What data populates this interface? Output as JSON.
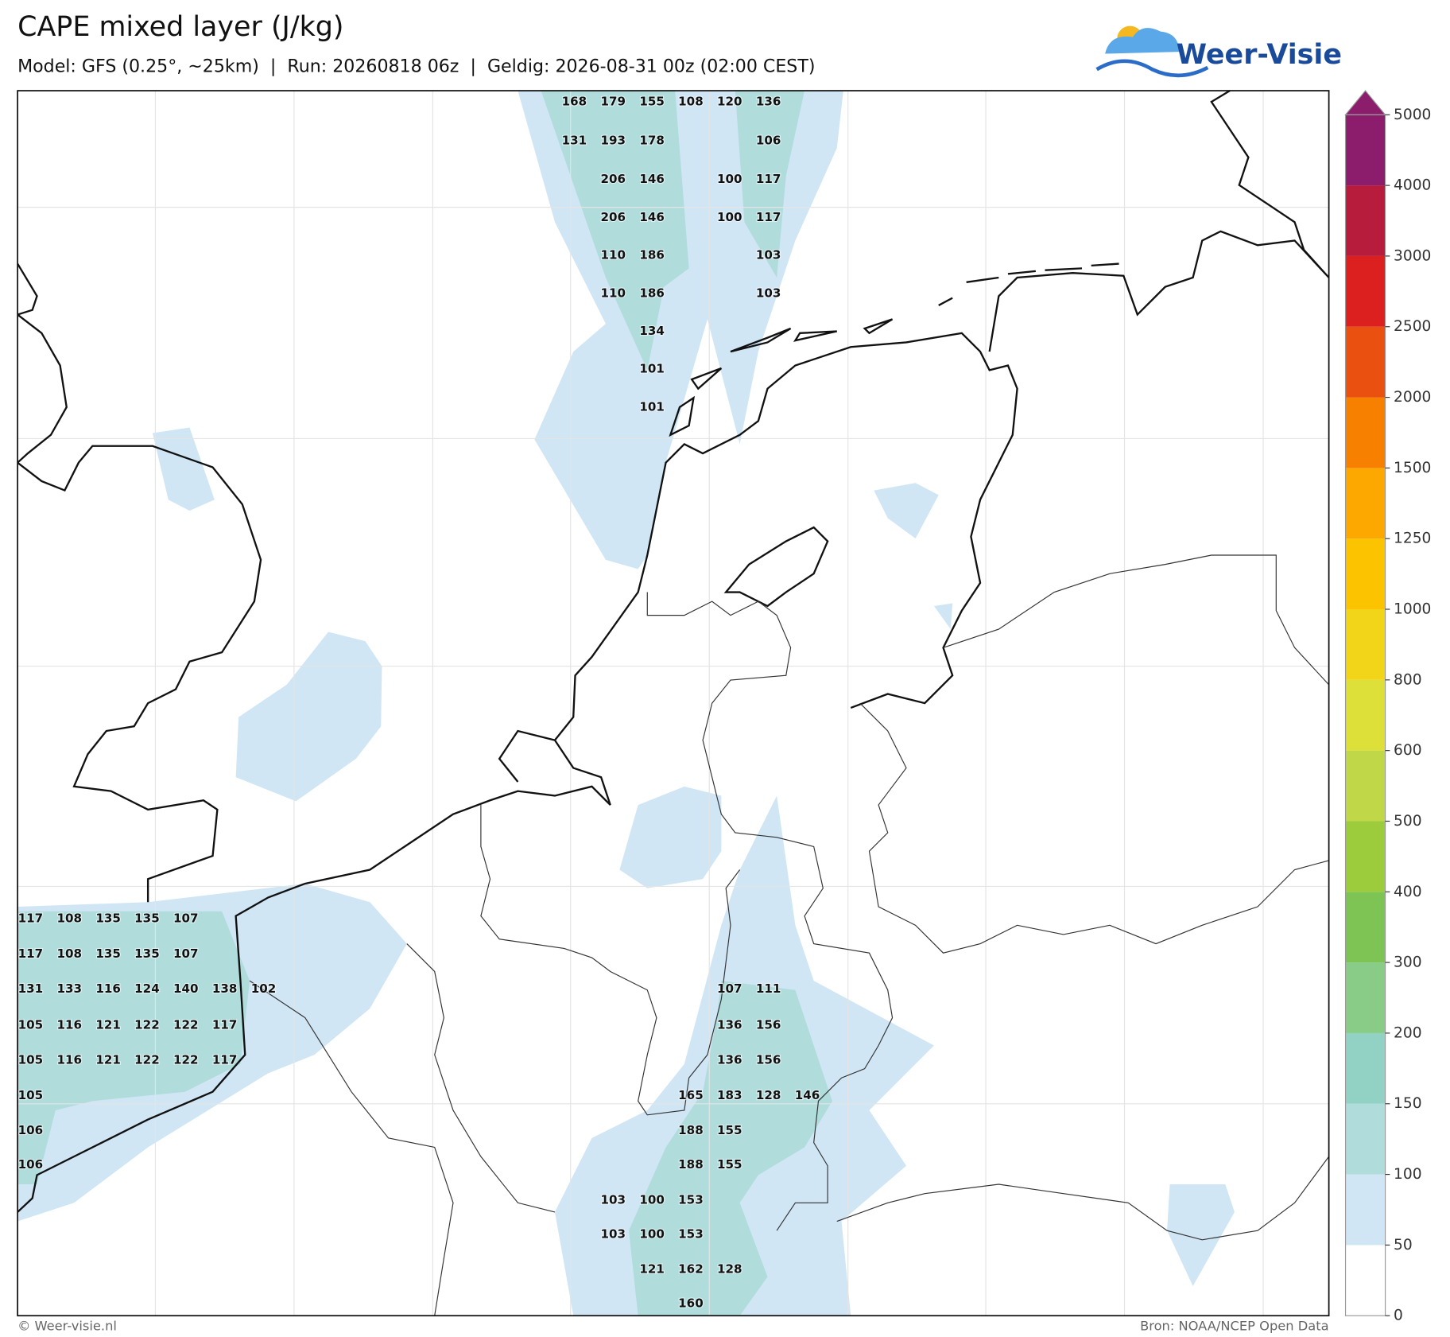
{
  "header": {
    "title": "CAPE mixed layer (J/kg)",
    "subtitle": "Model: GFS (0.25°, ~25km)  |  Run: 20260818 06z  |  Geldig: 2026-08-31 00z (02:00 CEST)",
    "logo": "Weer-Visie"
  },
  "map": {
    "value_rows": [
      [
        null,
        null,
        null,
        null,
        null,
        null,
        null,
        null,
        null,
        null,
        null,
        null,
        null,
        null,
        168,
        179,
        155,
        108,
        120,
        136,
        null
      ],
      [
        null,
        null,
        null,
        null,
        null,
        null,
        null,
        null,
        null,
        null,
        null,
        null,
        null,
        null,
        131,
        193,
        178,
        null,
        null,
        106,
        null
      ],
      [
        null,
        null,
        null,
        null,
        null,
        null,
        null,
        null,
        null,
        null,
        null,
        null,
        null,
        null,
        null,
        206,
        146,
        null,
        100,
        117,
        null
      ],
      [
        null,
        null,
        null,
        null,
        null,
        null,
        null,
        null,
        null,
        null,
        null,
        null,
        null,
        null,
        null,
        206,
        146,
        null,
        100,
        117,
        null
      ],
      [
        null,
        null,
        null,
        null,
        null,
        null,
        null,
        null,
        null,
        null,
        null,
        null,
        null,
        null,
        null,
        110,
        186,
        null,
        null,
        103,
        null
      ],
      [
        null,
        null,
        null,
        null,
        null,
        null,
        null,
        null,
        null,
        null,
        null,
        null,
        null,
        null,
        null,
        110,
        186,
        null,
        null,
        103,
        null
      ],
      [
        null,
        null,
        null,
        null,
        null,
        null,
        null,
        null,
        null,
        null,
        null,
        null,
        null,
        null,
        null,
        null,
        134,
        null,
        null,
        null,
        null
      ],
      [
        null,
        null,
        null,
        null,
        null,
        null,
        null,
        null,
        null,
        null,
        null,
        null,
        null,
        null,
        null,
        null,
        101,
        null,
        null,
        null,
        null
      ],
      [
        null,
        null,
        null,
        null,
        null,
        null,
        null,
        null,
        null,
        null,
        null,
        null,
        null,
        null,
        null,
        null,
        101,
        null,
        null,
        null,
        null
      ],
      [
        117,
        108,
        135,
        135,
        107,
        null,
        null,
        null,
        null,
        null,
        null,
        null,
        null,
        null,
        null,
        null,
        null,
        null,
        null,
        null,
        null
      ],
      [
        117,
        108,
        135,
        135,
        107,
        null,
        null,
        null,
        null,
        null,
        null,
        null,
        null,
        null,
        null,
        null,
        null,
        null,
        null,
        null,
        null
      ],
      [
        131,
        133,
        116,
        124,
        140,
        138,
        102,
        null,
        null,
        null,
        null,
        null,
        null,
        null,
        null,
        null,
        null,
        null,
        107,
        111,
        null
      ],
      [
        105,
        116,
        121,
        122,
        122,
        117,
        null,
        null,
        null,
        null,
        null,
        null,
        null,
        null,
        null,
        null,
        null,
        null,
        136,
        156,
        null
      ],
      [
        105,
        116,
        121,
        122,
        122,
        117,
        null,
        null,
        null,
        null,
        null,
        null,
        null,
        null,
        null,
        null,
        null,
        null,
        136,
        156,
        null
      ],
      [
        105,
        null,
        null,
        null,
        null,
        null,
        null,
        null,
        null,
        null,
        null,
        null,
        null,
        null,
        null,
        null,
        null,
        165,
        183,
        128,
        146
      ],
      [
        106,
        null,
        null,
        null,
        null,
        null,
        null,
        null,
        null,
        null,
        null,
        null,
        null,
        null,
        null,
        null,
        null,
        188,
        155,
        null,
        null
      ],
      [
        106,
        null,
        null,
        null,
        null,
        null,
        null,
        null,
        null,
        null,
        null,
        null,
        null,
        null,
        null,
        null,
        null,
        188,
        155,
        null,
        null
      ],
      [
        null,
        null,
        null,
        null,
        null,
        null,
        null,
        null,
        null,
        null,
        null,
        null,
        null,
        null,
        null,
        103,
        100,
        153,
        null,
        null,
        null
      ],
      [
        null,
        null,
        null,
        null,
        null,
        null,
        null,
        null,
        null,
        null,
        null,
        null,
        null,
        null,
        null,
        103,
        100,
        153,
        null,
        null,
        null
      ],
      [
        null,
        null,
        null,
        null,
        null,
        null,
        null,
        null,
        null,
        null,
        null,
        null,
        null,
        null,
        null,
        null,
        121,
        162,
        128,
        null,
        null
      ],
      [
        null,
        null,
        null,
        null,
        null,
        null,
        null,
        null,
        null,
        null,
        null,
        null,
        null,
        null,
        null,
        null,
        null,
        160,
        null,
        null,
        null
      ]
    ]
  },
  "colorbar": {
    "ticks": [
      0,
      50,
      100,
      150,
      200,
      300,
      400,
      500,
      600,
      800,
      1000,
      1250,
      1500,
      2000,
      2500,
      3000,
      4000,
      5000
    ],
    "colors": [
      "#ffffff",
      "#d0e6f5",
      "#b0dcdc",
      "#92d2c4",
      "#88cc88",
      "#7ec454",
      "#9ccc3c",
      "#c0d848",
      "#dce038",
      "#f2d418",
      "#fcc400",
      "#fca800",
      "#f88000",
      "#ea5010",
      "#dc2020",
      "#b81c3c",
      "#8c1c6c"
    ],
    "extend_color": "#8c1c6c"
  },
  "footer": {
    "credit": "© Weer-visie.nl",
    "source": "Bron: NOAA/NCEP Open Data"
  }
}
